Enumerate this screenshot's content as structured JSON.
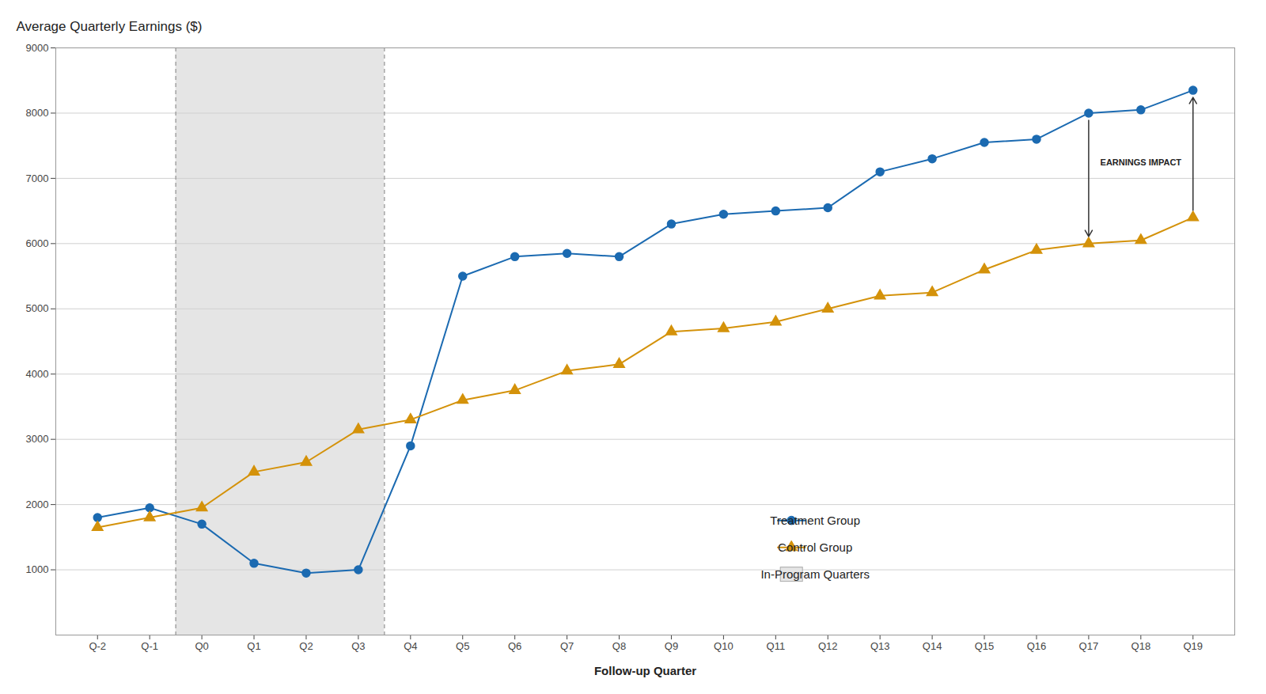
{
  "chart_data": {
    "type": "line",
    "categories": [
      "Q-2",
      "Q-1",
      "Q0",
      "Q1",
      "Q2",
      "Q3",
      "Q4",
      "Q5",
      "Q6",
      "Q7",
      "Q8",
      "Q9",
      "Q10",
      "Q11",
      "Q12",
      "Q13",
      "Q14",
      "Q15",
      "Q16",
      "Q17",
      "Q18",
      "Q19"
    ],
    "series": [
      {
        "name": "Treatment Group",
        "color": "#1b6ab1",
        "marker": "circle",
        "line_style": "solid",
        "values": [
          1800,
          1950,
          1700,
          1100,
          950,
          1000,
          2900,
          5500,
          5800,
          5850,
          5800,
          6300,
          6450,
          6500,
          6550,
          7100,
          7300,
          7550,
          7600,
          8000,
          8050,
          8350
        ]
      },
      {
        "name": "Control Group",
        "color": "#d4920a",
        "marker": "triangle",
        "line_style": "solid",
        "values": [
          1650,
          1800,
          1950,
          2500,
          2650,
          3150,
          3300,
          3600,
          3750,
          4050,
          4150,
          4650,
          4700,
          4800,
          5000,
          5200,
          5250,
          5600,
          5900,
          6000,
          6050,
          6400
        ]
      }
    ],
    "shaded_regions": [
      {
        "name": "In-Program Quarters",
        "from": "Q0",
        "to": "Q3",
        "color": "#e5e5e5"
      }
    ],
    "xlabel": "Follow-up Quarter",
    "ylabel": "Average Quarterly Earnings ($)",
    "ylim": [
      0,
      9000
    ],
    "yticks": [
      1000,
      2000,
      3000,
      4000,
      5000,
      6000,
      7000,
      8000,
      9000
    ],
    "grid": true,
    "legend": "lower right",
    "annotations": [
      {
        "text": "EARNINGS IMPACT",
        "arrows": [
          {
            "x": "Q17",
            "from": "Treatment Group",
            "to": "Control Group"
          },
          {
            "x": "Q19",
            "from": "Control Group",
            "to": "Treatment Group"
          }
        ]
      }
    ]
  }
}
